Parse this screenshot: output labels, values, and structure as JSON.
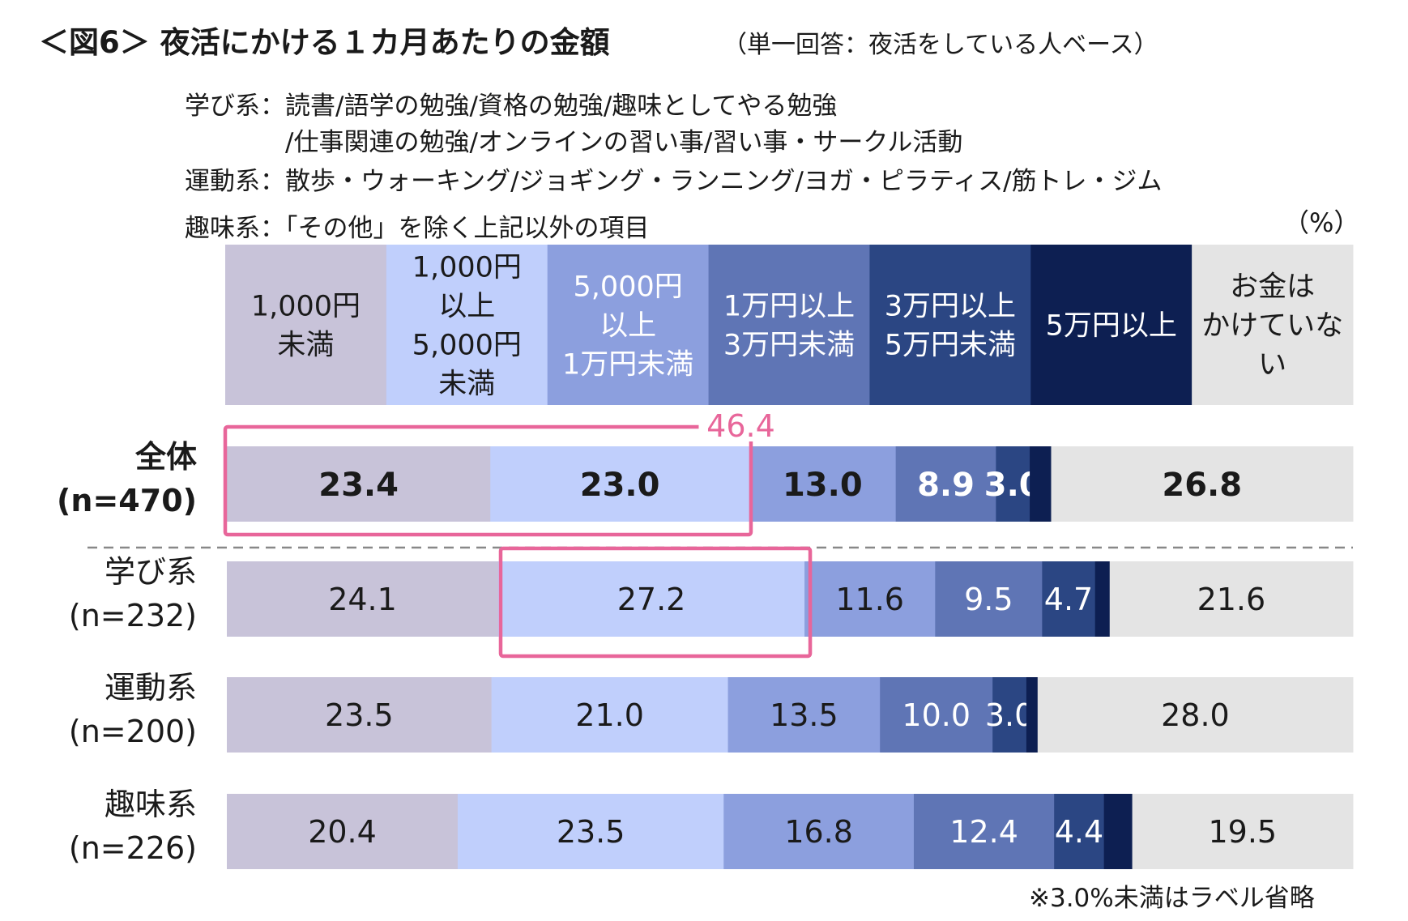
{
  "title": "＜図6＞ 夜活にかける１カ月あたりの金額",
  "subtitle": "（単一回答：夜活をしている人ベース）",
  "definitions": [
    "学び系：読書/語学の勉強/資格の勉強/趣味としてやる勉強",
    "/仕事関連の勉強/オンラインの習い事/習い事・サークル活動",
    "運動系：散歩・ウォーキング/ジョギング・ランニング/ヨガ・ピラティス/筋トレ・ジム",
    "趣味系：「その他」を除く上記以外の項目"
  ],
  "unit": "（%）",
  "note": "※3.0%未満はラベル省略",
  "colors": {
    "categories": [
      "#c8c3d9",
      "#c0cffc",
      "#8c9fde",
      "#5f75b5",
      "#2b4683",
      "#0d1f52",
      "#e4e4e4"
    ],
    "highlight": "#e8669a",
    "divider": "#888888"
  },
  "chart_data": {
    "type": "bar",
    "orientation": "horizontal",
    "stacked": true,
    "xlim": [
      0,
      100
    ],
    "categories": [
      "1,000円\n未満",
      "1,000円\n以上\n5,000円\n未満",
      "5,000円\n以上\n1万円未満",
      "1万円以上\n3万円未満",
      "3万円以上\n5万円未満",
      "5万円以上",
      "お金は\nかけていな\nい"
    ],
    "rows": [
      {
        "label": "全体",
        "n": "(n=470)",
        "bold": true,
        "values": [
          23.4,
          23.0,
          13.0,
          8.9,
          3.0,
          1.9,
          26.8
        ]
      },
      {
        "label": "学び系",
        "n": "(n=232)",
        "bold": false,
        "values": [
          24.1,
          27.2,
          11.6,
          9.5,
          4.7,
          1.3,
          21.6
        ]
      },
      {
        "label": "運動系",
        "n": "(n=200)",
        "bold": false,
        "values": [
          23.5,
          21.0,
          13.5,
          10.0,
          3.0,
          1.0,
          28.0
        ]
      },
      {
        "label": "趣味系",
        "n": "(n=226)",
        "bold": false,
        "values": [
          20.4,
          23.5,
          16.8,
          12.4,
          4.4,
          2.5,
          19.5
        ]
      }
    ],
    "label_threshold": 3.0,
    "annotation": "46.4"
  }
}
